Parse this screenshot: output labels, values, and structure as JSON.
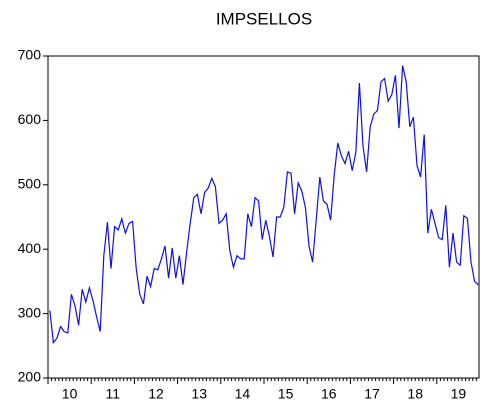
{
  "chart_data": {
    "type": "line",
    "title": "IMPSELLOS",
    "categories": [
      null,
      null,
      null,
      null,
      null,
      null,
      "10",
      null,
      null,
      null,
      null,
      null,
      null,
      null,
      null,
      null,
      null,
      null,
      "11",
      null,
      null,
      null,
      null,
      null,
      null,
      null,
      null,
      null,
      null,
      null,
      "12",
      null,
      null,
      null,
      null,
      null,
      null,
      null,
      null,
      null,
      null,
      null,
      "13",
      null,
      null,
      null,
      null,
      null,
      null,
      null,
      null,
      null,
      null,
      null,
      "14",
      null,
      null,
      null,
      null,
      null,
      null,
      null,
      null,
      null,
      null,
      null,
      "15",
      null,
      null,
      null,
      null,
      null,
      null,
      null,
      null,
      null,
      null,
      null,
      "16",
      null,
      null,
      null,
      null,
      null,
      null,
      null,
      null,
      null,
      null,
      null,
      "17",
      null,
      null,
      null,
      null,
      null,
      null,
      null,
      null,
      null,
      null,
      null,
      "18",
      null,
      null,
      null,
      null,
      null,
      null,
      null,
      null,
      null,
      null,
      null,
      "19",
      null,
      null,
      null,
      null,
      null
    ],
    "series": [
      {
        "name": "IMPSELLOS",
        "color": "#1010e0",
        "values": [
          305,
          255,
          262,
          280,
          272,
          270,
          330,
          312,
          282,
          338,
          318,
          340,
          320,
          295,
          272,
          390,
          442,
          370,
          435,
          430,
          447,
          425,
          440,
          443,
          370,
          330,
          315,
          358,
          342,
          370,
          368,
          385,
          405,
          355,
          402,
          355,
          390,
          345,
          395,
          440,
          480,
          485,
          455,
          488,
          495,
          510,
          497,
          440,
          445,
          455,
          398,
          372,
          390,
          385,
          385,
          455,
          435,
          480,
          475,
          415,
          445,
          420,
          388,
          450,
          450,
          465,
          520,
          518,
          455,
          503,
          490,
          465,
          405,
          380,
          445,
          512,
          475,
          470,
          445,
          515,
          565,
          545,
          533,
          552,
          522,
          550,
          658,
          560,
          520,
          590,
          610,
          615,
          660,
          665,
          630,
          640,
          670,
          588,
          685,
          660,
          590,
          605,
          530,
          512,
          578,
          425,
          462,
          440,
          418,
          415,
          468,
          372,
          425,
          380,
          375,
          452,
          448,
          380,
          350,
          345
        ]
      }
    ],
    "ylim": [
      200,
      700
    ],
    "yticks": [
      200,
      300,
      400,
      500,
      600,
      700
    ]
  }
}
